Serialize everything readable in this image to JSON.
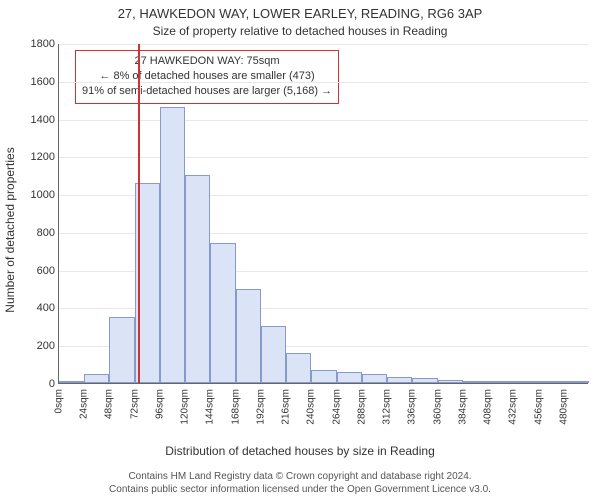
{
  "title": "27, HAWKEDON WAY, LOWER EARLEY, READING, RG6 3AP",
  "subtitle": "Size of property relative to detached houses in Reading",
  "ylabel": "Number of detached properties",
  "xlabel": "Distribution of detached houses by size in Reading",
  "footer_line1": "Contains HM Land Registry data © Crown copyright and database right 2024.",
  "footer_line2": "Contains public sector information licensed under the Open Government Licence v3.0.",
  "chart": {
    "type": "histogram",
    "background_color": "#ffffff",
    "grid_color": "#e8e8e8",
    "axis_color": "#666666",
    "bar_fill": "#dbe4f6",
    "bar_border": "#8899cc",
    "refline_color": "#cc3333",
    "refline_x": 75,
    "ylim": [
      0,
      1800
    ],
    "ytick_step": 200,
    "xlim": [
      0,
      504
    ],
    "xtick_step": 24,
    "xtick_suffix": "sqm",
    "label_fontsize": 12,
    "tick_fontsize": 11,
    "bars": [
      {
        "x0": 0,
        "x1": 24,
        "y": 5
      },
      {
        "x0": 24,
        "x1": 48,
        "y": 50
      },
      {
        "x0": 48,
        "x1": 72,
        "y": 350
      },
      {
        "x0": 72,
        "x1": 96,
        "y": 1060
      },
      {
        "x0": 96,
        "x1": 120,
        "y": 1460
      },
      {
        "x0": 120,
        "x1": 144,
        "y": 1100
      },
      {
        "x0": 144,
        "x1": 168,
        "y": 740
      },
      {
        "x0": 168,
        "x1": 192,
        "y": 500
      },
      {
        "x0": 192,
        "x1": 216,
        "y": 300
      },
      {
        "x0": 216,
        "x1": 240,
        "y": 160
      },
      {
        "x0": 240,
        "x1": 264,
        "y": 70
      },
      {
        "x0": 264,
        "x1": 288,
        "y": 60
      },
      {
        "x0": 288,
        "x1": 312,
        "y": 50
      },
      {
        "x0": 312,
        "x1": 336,
        "y": 30
      },
      {
        "x0": 336,
        "x1": 360,
        "y": 25
      },
      {
        "x0": 360,
        "x1": 384,
        "y": 15
      },
      {
        "x0": 384,
        "x1": 408,
        "y": 10
      },
      {
        "x0": 408,
        "x1": 432,
        "y": 8
      },
      {
        "x0": 432,
        "x1": 456,
        "y": 10
      },
      {
        "x0": 456,
        "x1": 480,
        "y": 5
      },
      {
        "x0": 480,
        "x1": 504,
        "y": 3
      }
    ]
  },
  "annotation": {
    "line1": "27 HAWKEDON WAY: 75sqm",
    "line2": "← 8% of detached houses are smaller (473)",
    "line3": "91% of semi-detached houses are larger (5,168) →",
    "border_color": "#cc3333"
  }
}
